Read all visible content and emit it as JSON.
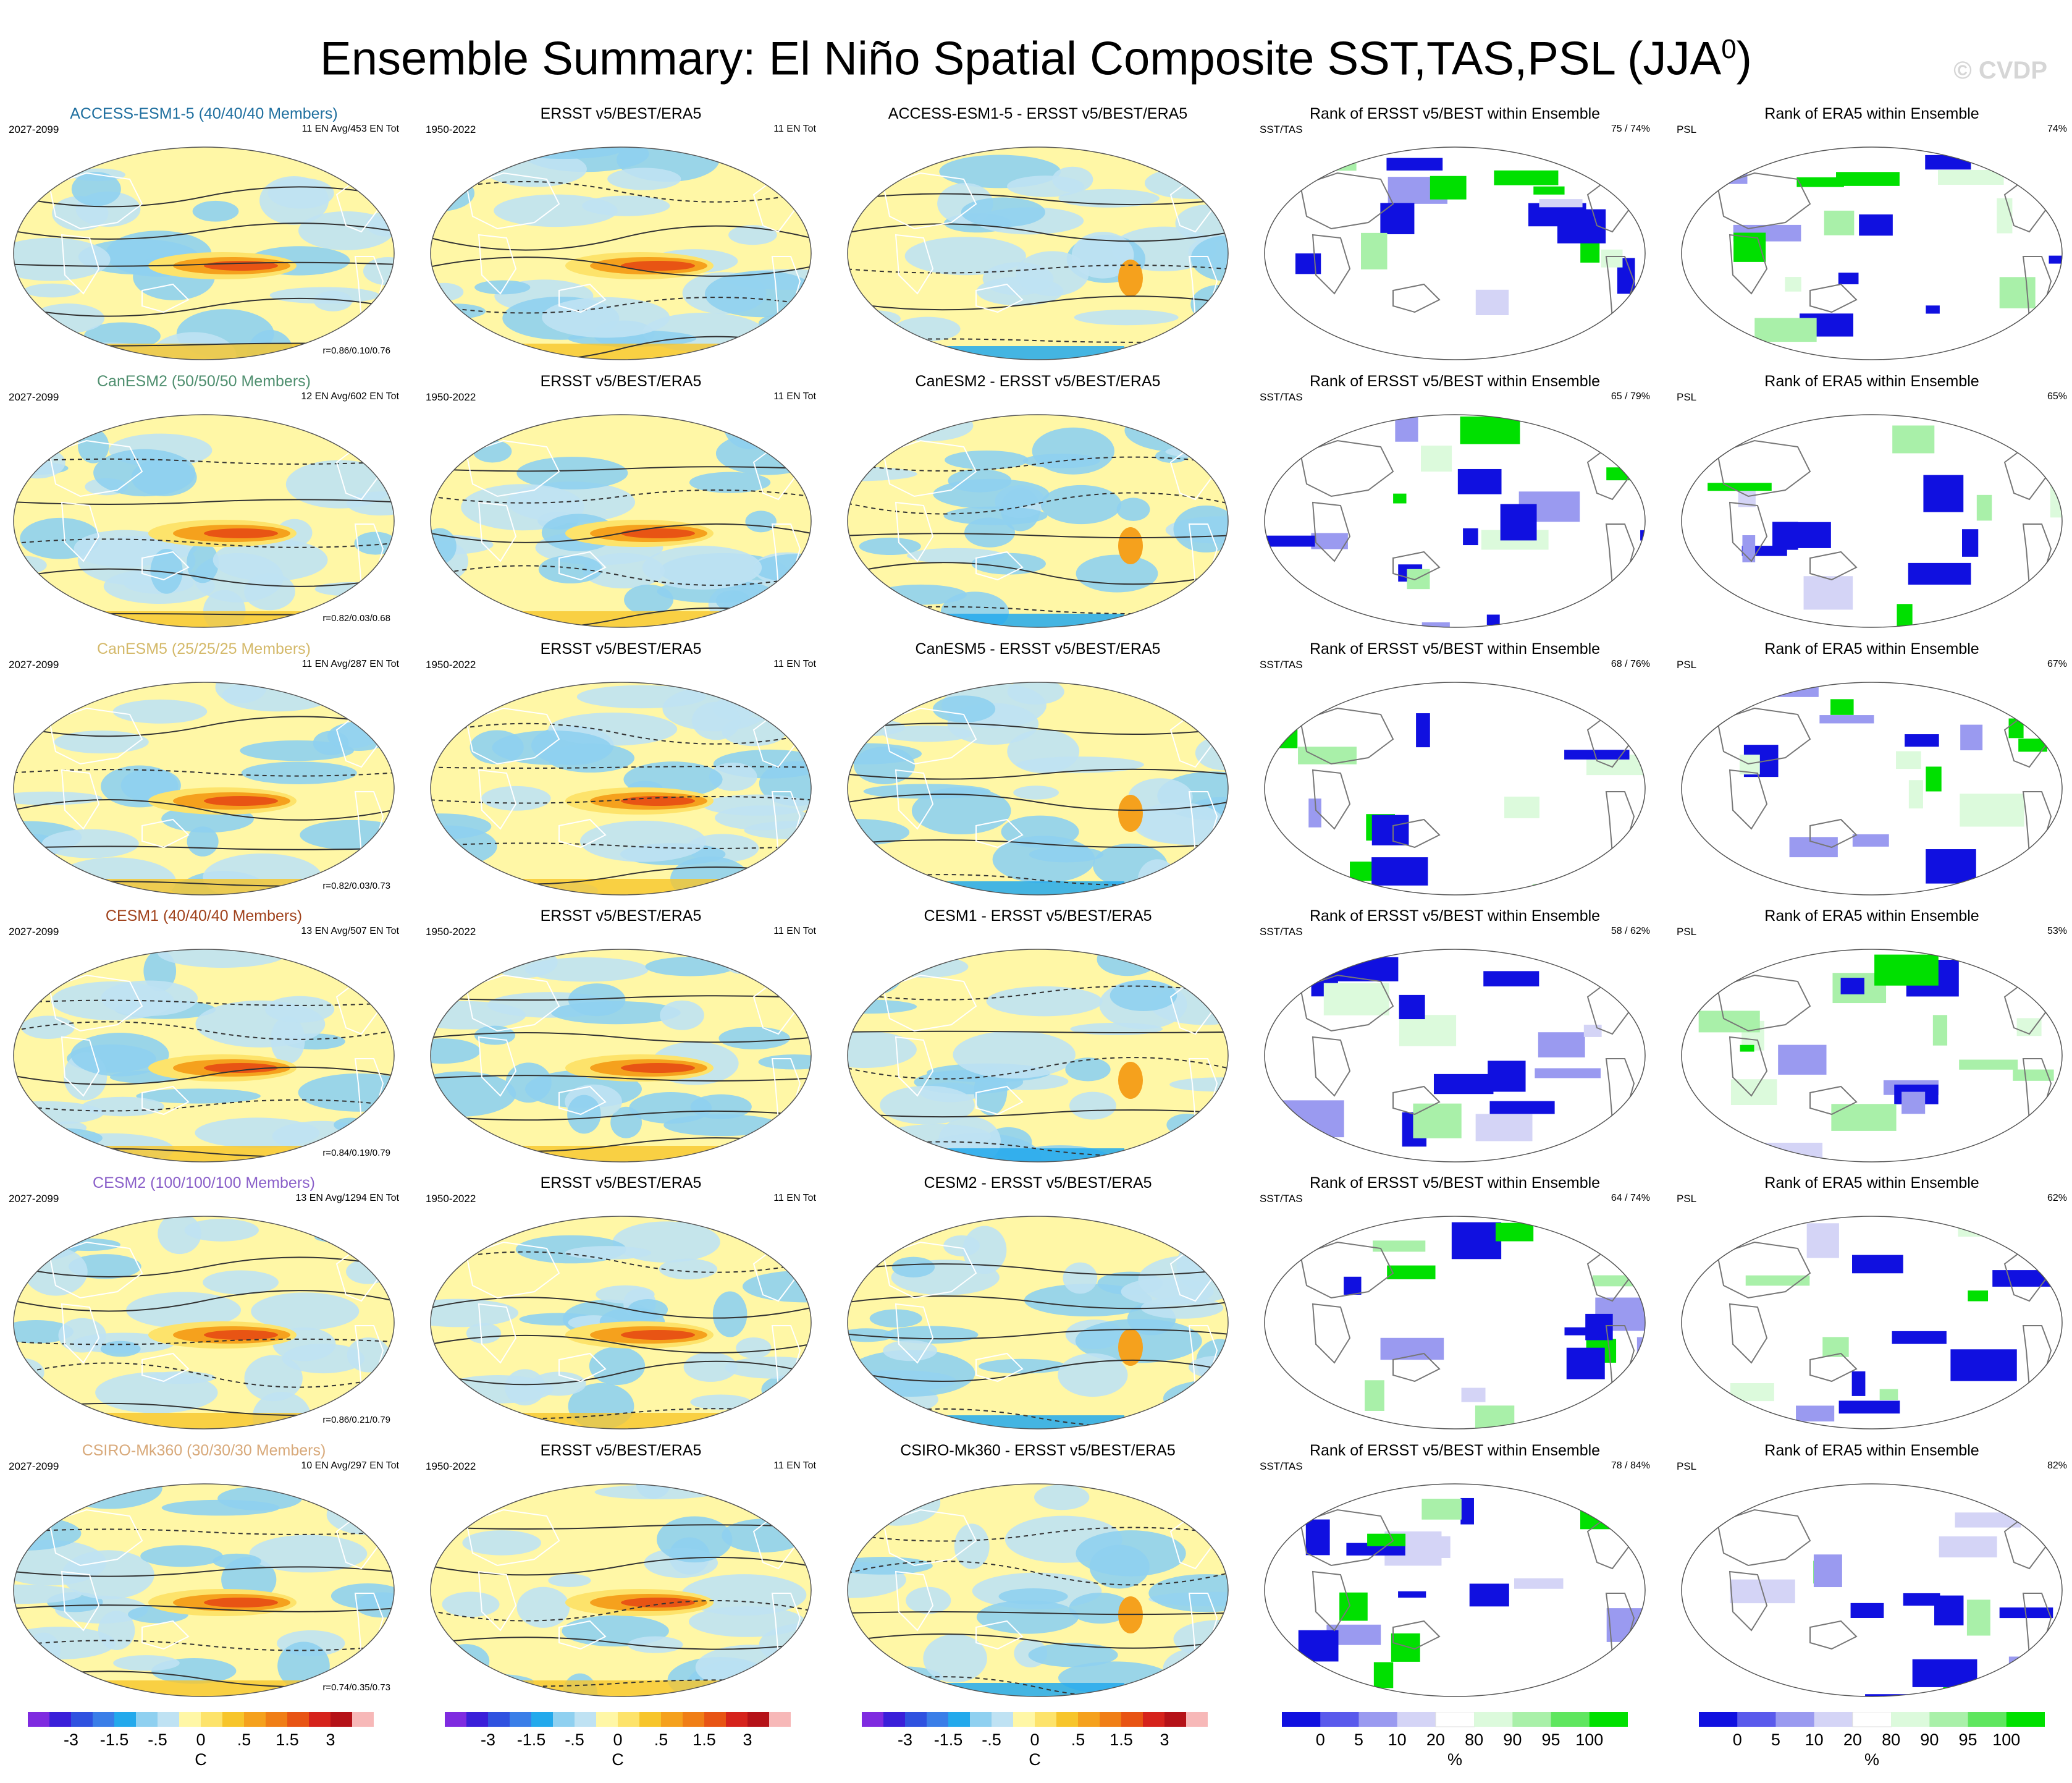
{
  "header": {
    "title": "Ensemble Summary: El Niño Spatial Composite SST,TAS,PSL (JJA",
    "title_sup": "0",
    "title_close": ")",
    "watermark": "© CVDP"
  },
  "columns": {
    "obs_title": "ERSST v5/BEST/ERA5",
    "obs_period": "1950-2022",
    "obs_count": "11 EN Tot",
    "model_period": "2027-2099",
    "rank_sst_title": "Rank of ERSST v5/BEST within Ensemble",
    "rank_sst_tag": "SST/TAS",
    "rank_psl_title": "Rank of ERA5 within Ensemble",
    "rank_psl_tag": "PSL"
  },
  "rows": [
    {
      "model_title": "ACCESS-ESM1-5 (40/40/40 Members)",
      "color": "#1f6f9f",
      "counts": "11 EN Avg/453 EN Tot",
      "corr": "r=0.86/0.10/0.76",
      "diff_title": "ACCESS-ESM1-5 - ERSST v5/BEST/ERA5",
      "rank_sst_pct": "75 /  74%",
      "rank_psl_pct": "74%"
    },
    {
      "model_title": "CanESM2 (50/50/50 Members)",
      "color": "#4f8f6f",
      "counts": "12 EN Avg/602 EN Tot",
      "corr": "r=0.82/0.03/0.68",
      "diff_title": "CanESM2 - ERSST v5/BEST/ERA5",
      "rank_sst_pct": "65 /  79%",
      "rank_psl_pct": "65%"
    },
    {
      "model_title": "CanESM5 (25/25/25 Members)",
      "color": "#d4b96a",
      "counts": "11 EN Avg/287 EN Tot",
      "corr": "r=0.82/0.03/0.73",
      "diff_title": "CanESM5 - ERSST v5/BEST/ERA5",
      "rank_sst_pct": "68 /  76%",
      "rank_psl_pct": "67%"
    },
    {
      "model_title": "CESM1 (40/40/40 Members)",
      "color": "#a0421c",
      "counts": "13 EN Avg/507 EN Tot",
      "corr": "r=0.84/0.19/0.79",
      "diff_title": "CESM1 - ERSST v5/BEST/ERA5",
      "rank_sst_pct": "58 /  62%",
      "rank_psl_pct": "53%"
    },
    {
      "model_title": "CESM2 (100/100/100 Members)",
      "color": "#8a5fc9",
      "counts": "13 EN Avg/1294 EN Tot",
      "corr": "r=0.86/0.21/0.79",
      "diff_title": "CESM2 - ERSST v5/BEST/ERA5",
      "rank_sst_pct": "64 /  74%",
      "rank_psl_pct": "62%"
    },
    {
      "model_title": "CSIRO-Mk360 (30/30/30 Members)",
      "color": "#d8a97a",
      "counts": "10 EN Avg/297 EN Tot",
      "corr": "r=0.74/0.35/0.73",
      "diff_title": "CSIRO-Mk360 - ERSST v5/BEST/ERA5",
      "rank_sst_pct": "78 /  84%",
      "rank_psl_pct": "82%"
    }
  ],
  "colorbars": {
    "temperature": {
      "colors": [
        "#7f2be0",
        "#3a1fd9",
        "#2f52e0",
        "#3a7ee8",
        "#23a9ec",
        "#8fd0f0",
        "#bfe2f3",
        "#fff7a6",
        "#fde36b",
        "#f7c52b",
        "#f5a11d",
        "#f07e16",
        "#e85414",
        "#d6231c",
        "#b51218",
        "#f7b8b8"
      ],
      "tick_labels": [
        "-3",
        "-1.5",
        "-.5",
        "0",
        ".5",
        "1.5",
        "3"
      ],
      "tick_bounds": [
        2,
        4,
        6,
        8,
        10,
        12,
        14
      ],
      "unit": "C"
    },
    "rank": {
      "colors": [
        "#1010e0",
        "#5a5aec",
        "#9a9af0",
        "#d4d4f6",
        "#ffffff",
        "#dcfadc",
        "#a9f0a9",
        "#5fe65f",
        "#00e000"
      ],
      "tick_labels": [
        "0",
        "5",
        "10",
        "20",
        "80",
        "90",
        "95",
        "100"
      ],
      "tick_bounds": [
        1,
        2,
        3,
        4,
        5,
        6,
        7,
        8
      ],
      "unit": "%"
    }
  },
  "chart_data": {
    "type": "heatmap",
    "title": "Ensemble Summary: El Niño Spatial Composite SST,TAS,PSL (JJA0)",
    "description_units": {
      "composite": "C",
      "rank": "%"
    },
    "panels_per_row": [
      "model composite 2027-2099",
      "ERSST v5/BEST/ERA5 1950-2022",
      "model minus observations",
      "Rank of ERSST v5/BEST within Ensemble",
      "Rank of ERA5 within Ensemble"
    ],
    "models": [
      "ACCESS-ESM1-5",
      "CanESM2",
      "CanESM5",
      "CESM1",
      "CESM2",
      "CSIRO-Mk360"
    ],
    "members": [
      40,
      50,
      25,
      40,
      100,
      30
    ],
    "en_avg": [
      11,
      12,
      11,
      13,
      13,
      10
    ],
    "en_tot": [
      453,
      602,
      287,
      507,
      1294,
      297
    ],
    "pattern_corr": [
      [
        0.86,
        0.1,
        0.76
      ],
      [
        0.82,
        0.03,
        0.68
      ],
      [
        0.82,
        0.03,
        0.73
      ],
      [
        0.84,
        0.19,
        0.79
      ],
      [
        0.86,
        0.21,
        0.79
      ],
      [
        0.74,
        0.35,
        0.73
      ]
    ],
    "rank_sst_tas_pct": [
      [
        75,
        74
      ],
      [
        65,
        79
      ],
      [
        68,
        76
      ],
      [
        58,
        62
      ],
      [
        64,
        74
      ],
      [
        78,
        84
      ]
    ],
    "rank_psl_pct": [
      74,
      65,
      67,
      53,
      62,
      82
    ],
    "obs_en_tot": 11,
    "temperature_levels": [
      -3,
      -1.5,
      -0.5,
      0,
      0.5,
      1.5,
      3
    ],
    "rank_levels": [
      0,
      5,
      10,
      20,
      80,
      90,
      95,
      100
    ]
  }
}
